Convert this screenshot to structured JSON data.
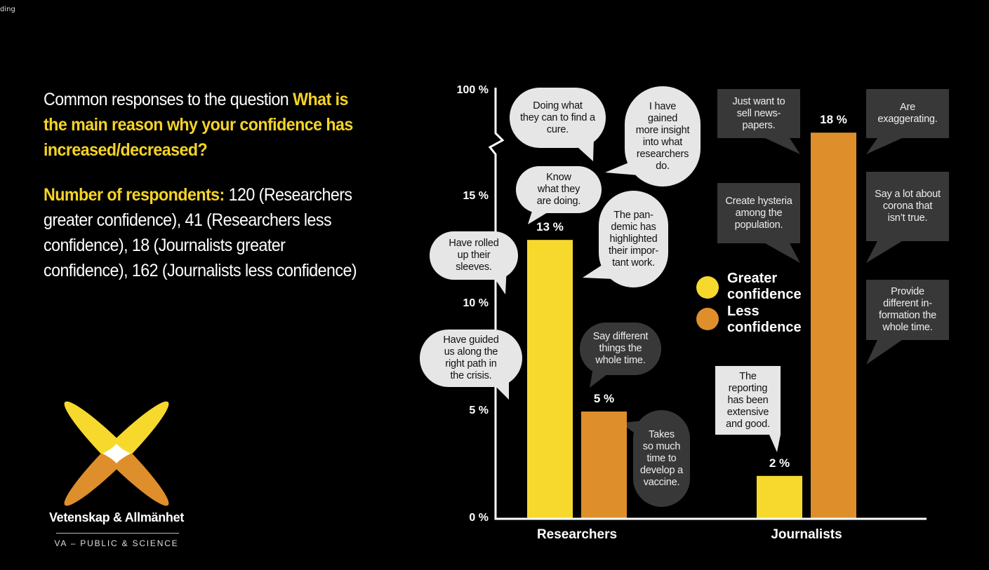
{
  "corner_text": "ding",
  "intro": {
    "question_prefix": "Common responses to the question ",
    "question_highlight": "What is the main reason why your confidence has increased/decreased?",
    "respondents_label": "Number of respondents:",
    "respondents_text": " 120 (Researchers greater confidence), 41 (Researchers less confidence), 18 (Journalists greater confidence), 162 (Journalists less confidence)"
  },
  "colors": {
    "greater": "#f7d92e",
    "less": "#de8f2b",
    "bubble_light": "#e6e6e6",
    "bubble_dark": "#383838",
    "background": "#000000"
  },
  "chart_data": {
    "type": "bar",
    "categories": [
      "Researchers",
      "Journalists"
    ],
    "series": [
      {
        "name": "Greater confidence",
        "values": [
          13,
          2
        ],
        "labels": [
          "13 %",
          "2 %"
        ]
      },
      {
        "name": "Less confidence",
        "values": [
          5,
          18
        ],
        "labels": [
          "5 %",
          "18 %"
        ]
      }
    ],
    "y_ticks": [
      "0 %",
      "5 %",
      "10 %",
      "15 %",
      "100 %"
    ],
    "y_tick_values": [
      0,
      5,
      10,
      15,
      100
    ],
    "axis_break": "between 15 % and 100 %",
    "legend_placement": "center-right",
    "grid": false
  },
  "legend": {
    "greater": "Greater\nconfidence",
    "less": "Less\nconfidence"
  },
  "bubbles": [
    {
      "text": "Doing what\nthey can to find a\ncure.",
      "tone": "light",
      "group": "Researchers greater"
    },
    {
      "text": "I have\ngained\nmore insight\ninto what\nresearchers\ndo.",
      "tone": "light",
      "group": "Researchers greater"
    },
    {
      "text": "Know\nwhat they\nare doing.",
      "tone": "light",
      "group": "Researchers greater"
    },
    {
      "text": "Have rolled\nup their\nsleeves.",
      "tone": "light",
      "group": "Researchers greater"
    },
    {
      "text": "The pan-\ndemic has\nhighlighted\ntheir impor-\ntant work.",
      "tone": "light",
      "group": "Researchers greater"
    },
    {
      "text": "Have guided\nus along the\nright path in\nthe crisis.",
      "tone": "light",
      "group": "Researchers greater"
    },
    {
      "text": "Say different\nthings the\nwhole time.",
      "tone": "dark",
      "group": "Researchers less"
    },
    {
      "text": "Takes\nso much\ntime to\ndevelop a\nvaccine.",
      "tone": "dark",
      "group": "Researchers less"
    },
    {
      "text": "Just want to\nsell news-\npapers.",
      "tone": "dark",
      "group": "Journalists less"
    },
    {
      "text": "Are\nexaggerating.",
      "tone": "dark",
      "group": "Journalists less"
    },
    {
      "text": "Create hysteria\namong the\npopulation.",
      "tone": "dark",
      "group": "Journalists less"
    },
    {
      "text": "Say a lot about\ncorona that\nisn’t true.",
      "tone": "dark",
      "group": "Journalists less"
    },
    {
      "text": "Provide\ndifferent in-\nformation the\nwhole time.",
      "tone": "dark",
      "group": "Journalists less"
    },
    {
      "text": "The\nreporting\nhas been\nextensive\nand good.",
      "tone": "light",
      "group": "Journalists greater"
    }
  ],
  "logo": {
    "name": "Vetenskap & Allmänhet",
    "tagline": "VA – PUBLIC & SCIENCE"
  }
}
